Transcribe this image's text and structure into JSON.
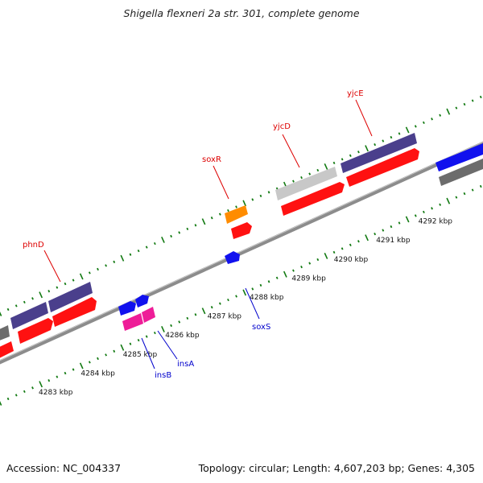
{
  "title": "Shigella flexneri 2a str. 301, complete genome",
  "footer": {
    "accession": "Accession: NC_004337",
    "topology": "Topology: circular; Length: 4,607,203 bp; Genes: 4,305"
  },
  "colors": {
    "backbone": "#8c8c8c",
    "tick": "#127a12",
    "cds_forward": "#ff1111",
    "cds_reverse": "#1111ee",
    "gene_forward": "#4a3f8c",
    "gene_reverse": "#6c6c6c",
    "pseudo": "#c8c8c8",
    "misc": "#ff8c00",
    "insertion": "#ee1d98",
    "label_forward": "#dd0000",
    "label_reverse": "#0000cc"
  },
  "axis_labels": [
    "4283 kbp",
    "4284 kbp",
    "4285 kbp",
    "4286 kbp",
    "4287 kbp",
    "4288 kbp",
    "4289 kbp",
    "4290 kbp",
    "4291 kbp",
    "4292 kbp"
  ],
  "gene_labels": {
    "forward": [
      "phnD",
      "soxR",
      "yjcD",
      "yjcE"
    ],
    "reverse": [
      "insB",
      "insA",
      "soxS"
    ]
  }
}
